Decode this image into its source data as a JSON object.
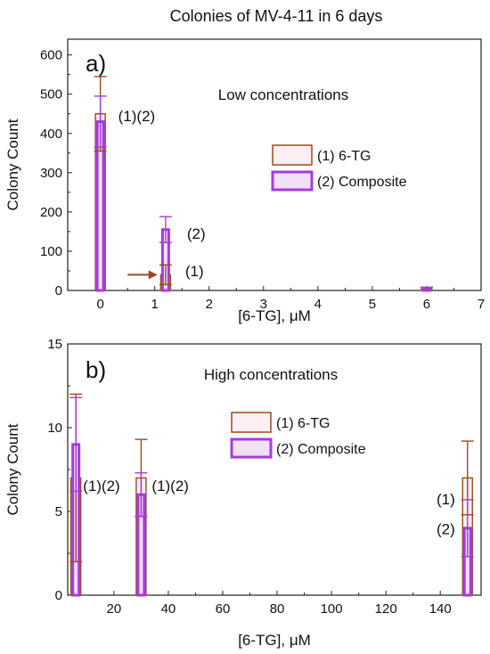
{
  "figure_title": "Colonies of MV-4-11 in 6 days",
  "colors": {
    "tg": "#9c4a1c",
    "composite": "#a63be0",
    "composite_fill": "#f2e0f7",
    "tg_fill": "#fbeff4",
    "arrow": "#9c4a1c"
  },
  "chart_data": [
    {
      "type": "bar",
      "panel_label": "a)",
      "subtitle": "Low concentrations",
      "xlabel": "[6-TG], μM",
      "ylabel": "Colony Count",
      "xlim": [
        -0.6,
        7
      ],
      "ylim": [
        0,
        640
      ],
      "xticks": [
        0,
        1,
        2,
        3,
        4,
        5,
        6,
        7
      ],
      "yticks": [
        0,
        100,
        200,
        300,
        400,
        500,
        600
      ],
      "grid": false,
      "legend_position": "center-right",
      "series": [
        {
          "name": "(1) 6-TG",
          "x": [
            0,
            1.2,
            6
          ],
          "values": [
            450,
            40,
            5
          ],
          "errors": [
            95,
            25,
            3
          ]
        },
        {
          "name": "(2) Composite",
          "x": [
            0,
            1.2,
            6
          ],
          "values": [
            430,
            155,
            5
          ],
          "errors": [
            65,
            33,
            3
          ]
        }
      ],
      "annotations": [
        {
          "text": "(1)(2)",
          "x": 0,
          "y": 440
        },
        {
          "text": "(2)",
          "x": 1.2,
          "y": 145
        },
        {
          "text": "(1)",
          "x": 1.2,
          "y": 45
        }
      ],
      "arrow": {
        "from_x": 0.5,
        "to_x": 1.05,
        "y": 40
      }
    },
    {
      "type": "bar",
      "panel_label": "b)",
      "subtitle": "High concentrations",
      "xlabel": "[6-TG], μM",
      "ylabel": "Colony Count",
      "xlim": [
        3,
        155
      ],
      "ylim": [
        0,
        15
      ],
      "xticks": [
        20,
        40,
        60,
        80,
        100,
        120,
        140
      ],
      "yticks": [
        0,
        5,
        10,
        15
      ],
      "grid": false,
      "legend_position": "center",
      "series": [
        {
          "name": "(1) 6-TG",
          "x": [
            6,
            30,
            150
          ],
          "values": [
            7,
            7,
            7
          ],
          "errors": [
            5,
            2.3,
            2.2
          ]
        },
        {
          "name": "(2) Composite",
          "x": [
            6,
            30,
            150
          ],
          "values": [
            9,
            6,
            4
          ],
          "errors": [
            2.8,
            1.3,
            1.7
          ]
        }
      ],
      "annotations": [
        {
          "text": "(1)(2)",
          "x": 6,
          "y": 6.5
        },
        {
          "text": "(1)(2)",
          "x": 30,
          "y": 6.5
        },
        {
          "text": "(1)",
          "x": 150,
          "y": 5.7
        },
        {
          "text": "(2)",
          "x": 150,
          "y": 3.9
        }
      ]
    }
  ]
}
